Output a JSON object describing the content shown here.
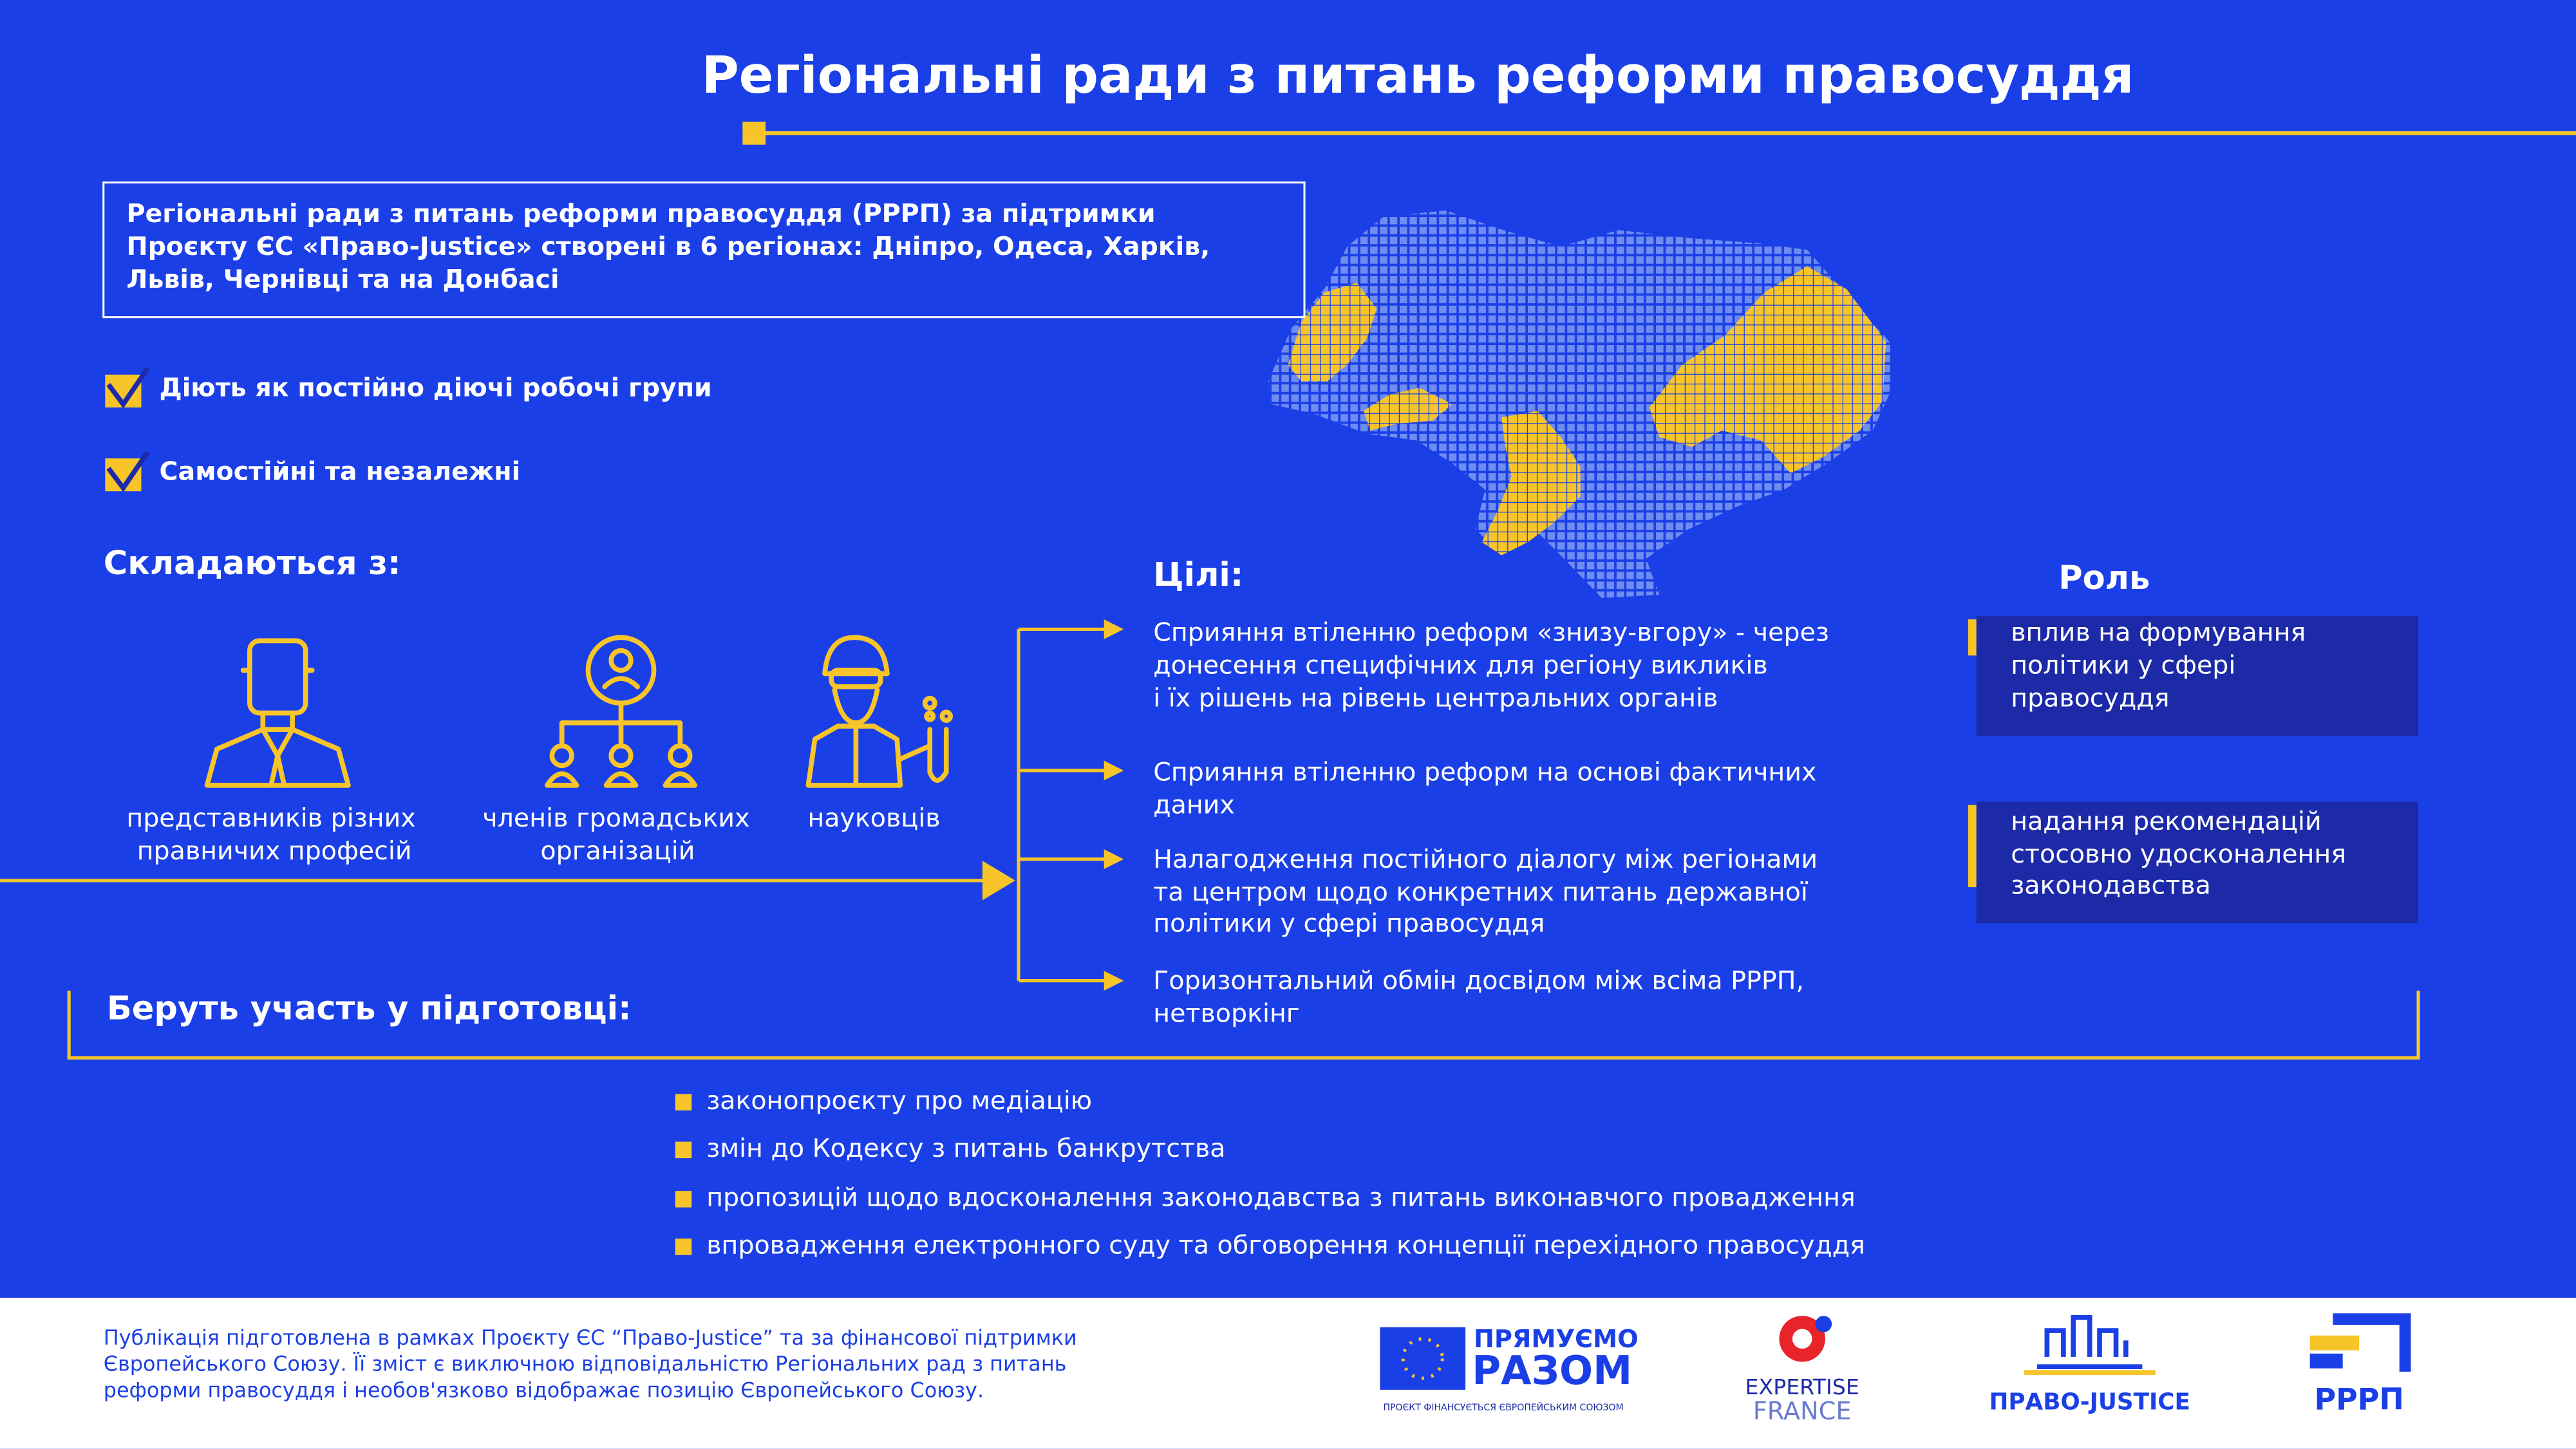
{
  "header": {
    "title": "Регіональні ради з питань реформи правосуддя"
  },
  "intro": {
    "lines": [
      "Регіональні ради з питань реформи правосуддя (РРРП) за підтримки",
      "Проєкту ЄС «Право-Justice» створені в 6 регіонах: Дніпро, Одеса, Харків,",
      "Львів, Чернівці та на Донбасі"
    ]
  },
  "features": [
    "Діють як постійно діючі робочі групи",
    "Самостійні та незалежні"
  ],
  "composition": {
    "heading": "Складаються з:",
    "members": [
      {
        "lines": [
          "представників різних",
          "правничих професій"
        ]
      },
      {
        "lines": [
          "членів громадських",
          "організацій"
        ]
      },
      {
        "lines": [
          "науковців"
        ]
      }
    ]
  },
  "goals": {
    "heading": "Цілі:",
    "items": [
      {
        "lines": [
          "Сприяння втіленню реформ «знизу-вгору» - через",
          "донесення специфічних для регіону викликів",
          "і їх рішень на рівень центральних органів"
        ]
      },
      {
        "lines": [
          "Сприяння втіленню реформ на основі фактичних",
          "даних"
        ]
      },
      {
        "lines": [
          "Налагодження постійного діалогу між регіонами",
          "та центром щодо конкретних питань державної",
          "політики у сфері правосуддя"
        ]
      },
      {
        "lines": [
          "Горизонтальний обмін досвідом між всіма РРРП,",
          "нетворкінг"
        ]
      }
    ]
  },
  "role": {
    "heading": "Роль",
    "items": [
      {
        "lines": [
          "вплив на формування",
          "політики у сфері",
          "правосуддя"
        ]
      },
      {
        "lines": [
          "надання рекомендацій",
          "стосовно удосконалення",
          "законодавства"
        ]
      }
    ]
  },
  "participation": {
    "heading": "Беруть участь у підготовці:",
    "items": [
      "законопроєкту про медіацію",
      "змін до Кодексу з питань банкрутства",
      "пропозицій щодо вдосконалення законодавства з питань виконавчого провадження",
      "впровадження електронного суду та обговорення концепції перехідного правосуддя"
    ]
  },
  "footer": {
    "disclaimer": [
      "Публікація підготовлена в рамках Проєкту ЄС “Право-Justice” та за фінансової підтримки",
      "Європейського Союзу. Її зміст є виключною відповідальністю Регіональних рад з питань",
      "реформи правосуддя і необов'язково відображає позицію Європейського Союзу."
    ],
    "logos": {
      "eu": [
        "ПРЯМУЄМО",
        "РАЗОМ",
        "ПРОЄКТ ФІНАНСУЄТЬСЯ ЄВРОПЕЙСЬКИМ СОЮЗОМ"
      ],
      "expertise": [
        "EXPERTISE",
        "FRANCE"
      ],
      "justice": "ПРАВО-JUSTICE",
      "rrrp": "РРРП"
    }
  }
}
